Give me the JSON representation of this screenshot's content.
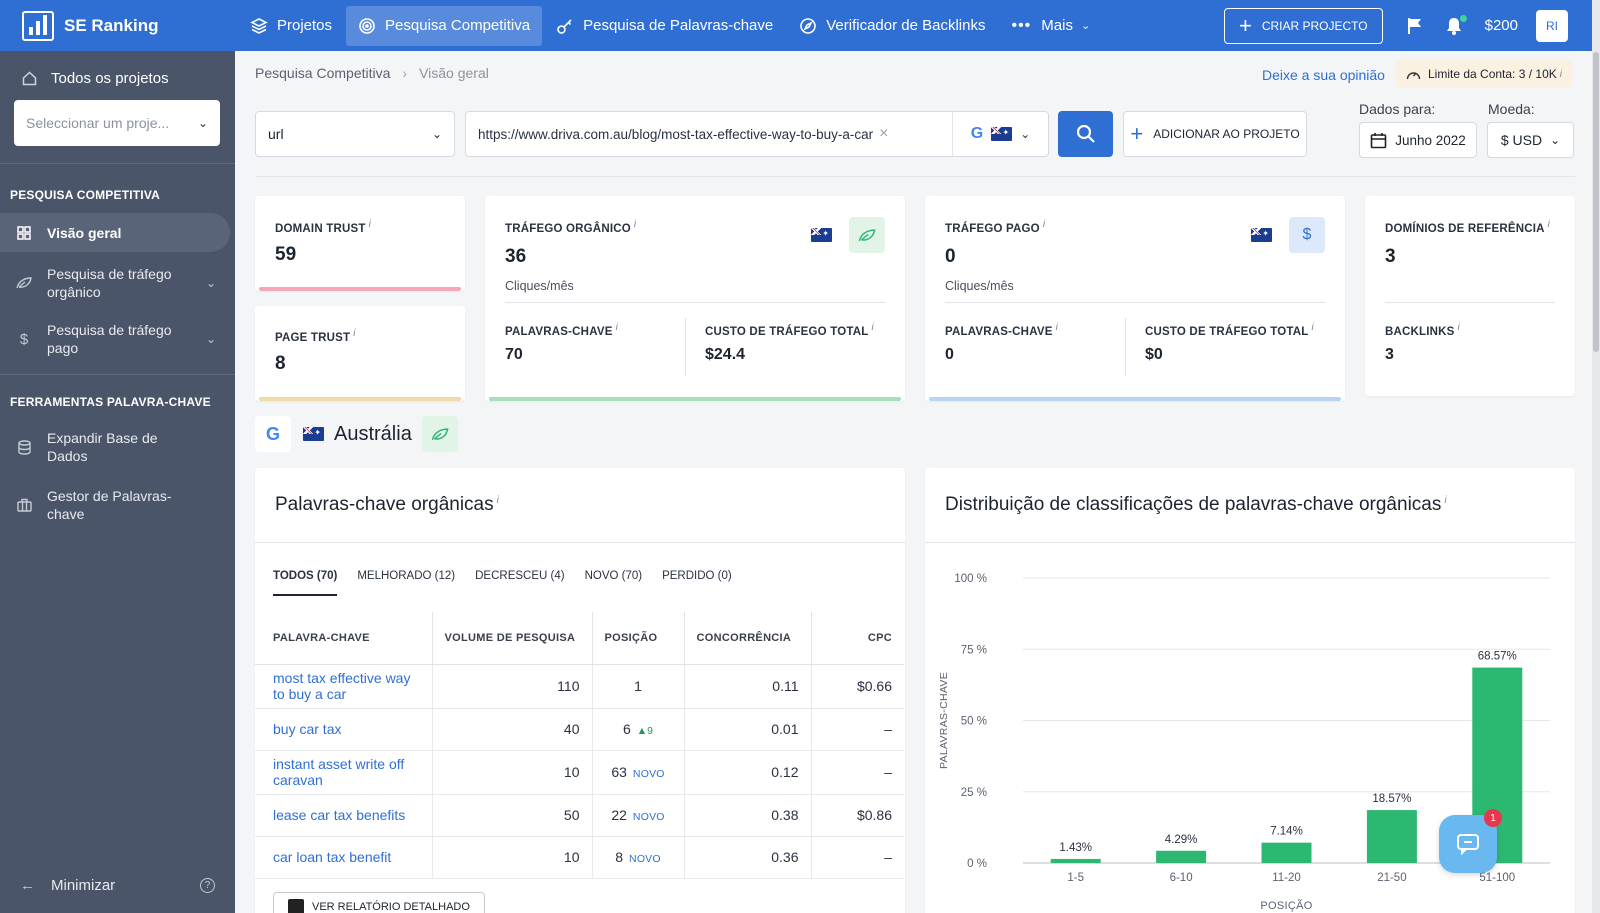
{
  "topbar": {
    "brand": "SE Ranking",
    "nav": [
      {
        "label": "Projetos",
        "icon": "layers-icon"
      },
      {
        "label": "Pesquisa Competitiva",
        "icon": "target-icon",
        "active": true
      },
      {
        "label": "Pesquisa de Palavras-chave",
        "icon": "key-icon"
      },
      {
        "label": "Verificador de Backlinks",
        "icon": "compass-icon"
      },
      {
        "label": "Mais",
        "icon": "dots-icon"
      }
    ],
    "create_project": "CRIAR PROJECTO",
    "balance": "$200",
    "avatar": "RI"
  },
  "sidebar": {
    "all_projects": "Todos os projetos",
    "project_select_placeholder": "Seleccionar um proje...",
    "section1": "PESQUISA COMPETITIVA",
    "overview": "Visão geral",
    "organic": "Pesquisa de tráfego orgânico",
    "paid": "Pesquisa de tráfego pago",
    "section2": "FERRAMENTAS PALAVRA-CHAVE",
    "expand_db": "Expandir Base de Dados",
    "kw_manager": "Gestor de Palavras-chave",
    "minimize": "Minimizar"
  },
  "header": {
    "breadcrumb_root": "Pesquisa Competitiva",
    "breadcrumb_current": "Visão geral",
    "feedback": "Deixe a sua opinião",
    "limit_label": "Limite da Conta:",
    "limit_value": "3 / 10K",
    "info": "i"
  },
  "search": {
    "mode": "url",
    "url": "https://www.driva.com.au/blog/most-tax-effective-way-to-buy-a-car",
    "add_to_project": "ADICIONAR AO PROJETO",
    "data_for_label": "Dados para:",
    "date": "Junho 2022",
    "currency_label": "Moeda:",
    "currency": "$ USD"
  },
  "metrics": {
    "domain_trust_label": "DOMAIN TRUST",
    "domain_trust": "59",
    "page_trust_label": "PAGE TRUST",
    "page_trust": "8",
    "organic_label": "TRÁFEGO ORGÂNICO",
    "organic_value": "36",
    "organic_unit": "Cliques/mês",
    "organic_kw_label": "PALAVRAS-CHAVE",
    "organic_kw": "70",
    "organic_cost_label": "CUSTO DE TRÁFEGO TOTAL",
    "organic_cost": "$24.4",
    "paid_label": "TRÁFEGO PAGO",
    "paid_value": "0",
    "paid_unit": "Cliques/mês",
    "paid_kw_label": "PALAVRAS-CHAVE",
    "paid_kw": "0",
    "paid_cost_label": "CUSTO DE TRÁFEGO TOTAL",
    "paid_cost": "$0",
    "ref_domains_label": "DOMÍNIOS DE REFERÊNCIA",
    "ref_domains": "3",
    "backlinks_label": "BACKLINKS",
    "backlinks": "3",
    "colors": {
      "domain_trust_bar": "#f5a9b8",
      "page_trust_bar": "#f1d9a8",
      "organic_bar": "#a7dfb9",
      "paid_bar": "#b8d4f3"
    }
  },
  "location": {
    "name": "Austrália"
  },
  "keywords": {
    "title": "Palavras-chave orgânicas",
    "tabs": [
      "TODOS (70)",
      "MELHORADO (12)",
      "DECRESCEU (4)",
      "NOVO (70)",
      "PERDIDO (0)"
    ],
    "columns": [
      "PALAVRA-CHAVE",
      "VOLUME DE PESQUISA",
      "POSIÇÃO",
      "CONCORRÊNCIA",
      "CPC"
    ],
    "rows": [
      {
        "kw": "most tax effective way to buy a car",
        "volume": "110",
        "pos": "1",
        "tag": "",
        "comp": "0.11",
        "cpc": "$0.66"
      },
      {
        "kw": "buy car tax",
        "volume": "40",
        "pos": "6",
        "tag": "▲9",
        "comp": "0.01",
        "cpc": "–"
      },
      {
        "kw": "instant asset write off caravan",
        "volume": "10",
        "pos": "63",
        "tag": "NOVO",
        "comp": "0.12",
        "cpc": "–"
      },
      {
        "kw": "lease car tax benefits",
        "volume": "50",
        "pos": "22",
        "tag": "NOVO",
        "comp": "0.38",
        "cpc": "$0.86"
      },
      {
        "kw": "car loan tax benefit",
        "volume": "10",
        "pos": "8",
        "tag": "NOVO",
        "comp": "0.36",
        "cpc": "–"
      }
    ],
    "detail_button": "VER RELATÓRIO DETALHADO"
  },
  "distribution": {
    "title": "Distribuição de classificações de palavras-chave orgânicas"
  },
  "chart_data": {
    "type": "bar",
    "categories": [
      "1-5",
      "6-10",
      "11-20",
      "21-50",
      "51-100"
    ],
    "values": [
      1.43,
      4.29,
      7.14,
      18.57,
      68.57
    ],
    "value_labels": [
      "1.43%",
      "4.29%",
      "7.14%",
      "18.57%",
      "68.57%"
    ],
    "yticks": [
      "0 %",
      "25 %",
      "50 %",
      "75 %",
      "100 %"
    ],
    "ylim": [
      0,
      100
    ],
    "xlabel": "POSIÇÃO",
    "ylabel": "PALAVRAS-CHAVE",
    "bar_color": "#2db872",
    "grid": true
  },
  "chat": {
    "badge": "1"
  }
}
